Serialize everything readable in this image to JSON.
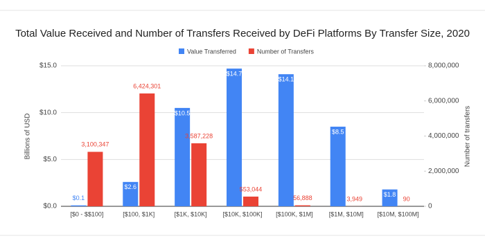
{
  "chart_data": {
    "type": "bar",
    "title": "Total Value Received and Number of Transfers Received by DeFi Platforms By Transfer Size, 2020",
    "categories": [
      "[$0 - $$100]",
      "[$100, $1K]",
      "[$1K, $10K]",
      "[$10K, $100K]",
      "[$100K, $1M]",
      "[$1M, $10M]",
      "[$10M, $100M]"
    ],
    "series": [
      {
        "name": "Value Transferred",
        "color": "#4285f4",
        "values": [
          0.1,
          2.6,
          10.5,
          14.7,
          14.1,
          8.5,
          1.8
        ],
        "value_labels": [
          "$0.1",
          "$2.6",
          "$10.5",
          "$14.7",
          "$14.1",
          "$8.5",
          "$1.8"
        ]
      },
      {
        "name": "Number of Transfers",
        "color": "#ea4335",
        "axis": "y2",
        "values": [
          3100347,
          6424301,
          3587228,
          553044,
          56888,
          3949,
          90
        ],
        "value_labels": [
          "3,100,347",
          "6,424,301",
          "3,587,228",
          "553,044",
          "56,888",
          "3,949",
          "90"
        ]
      }
    ],
    "ylabel": "Billions of USD",
    "y2label": "Number of transfers",
    "ylim": [
      0,
      15
    ],
    "yticks": [
      {
        "value": 0,
        "label": "$0.0"
      },
      {
        "value": 5,
        "label": "$5.0"
      },
      {
        "value": 10,
        "label": "$10.0"
      },
      {
        "value": 15,
        "label": "$15.0"
      }
    ],
    "y2lim": [
      0,
      8000000
    ],
    "y2ticks": [
      0,
      {
        "value": 2000000,
        "label": "2,000,000"
      },
      {
        "value": 4000000,
        "label": "4,000,000"
      },
      {
        "value": 6000000,
        "label": "6,000,000"
      },
      {
        "value": 8000000,
        "label": "8,000,000"
      }
    ],
    "grid": true,
    "legend": "top"
  }
}
